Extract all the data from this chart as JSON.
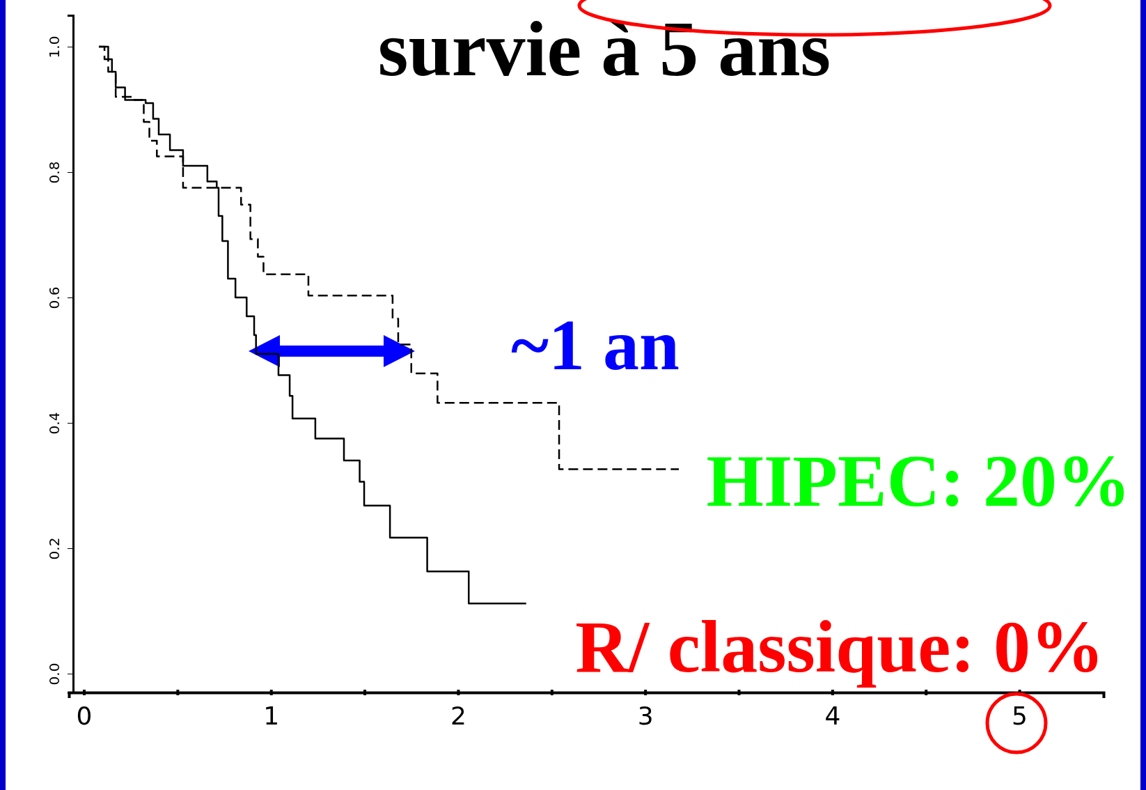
{
  "chart_data": {
    "type": "step",
    "title": "survie à 5 ans",
    "xlim": [
      -0.08,
      5.45
    ],
    "ylim": [
      -0.03,
      1.05
    ],
    "xticks": [
      0,
      {
        "value": 0.5,
        "label": null
      },
      1,
      {
        "value": 1.5,
        "label": null
      },
      2,
      {
        "value": 2.5,
        "label": null
      },
      3,
      {
        "value": 3.5,
        "label": null
      },
      4,
      {
        "value": 4.5,
        "label": null
      },
      5
    ],
    "yticks": [
      {
        "value": 0,
        "label": "0.0"
      },
      {
        "value": 0.2,
        "label": "0.2"
      },
      {
        "value": 0.4,
        "label": "0.4"
      },
      {
        "value": 0.6,
        "label": "0.6"
      },
      {
        "value": 0.8,
        "label": "0.8"
      },
      {
        "value": 1,
        "label": "1.0"
      }
    ],
    "grid": false,
    "series": [
      {
        "color": "#000000",
        "line_style": "solid",
        "x": [
          0.08,
          0.13,
          0.15,
          0.17,
          0.22,
          0.33,
          0.37,
          0.4,
          0.46,
          0.53,
          0.66,
          0.71,
          0.72,
          0.74,
          0.77,
          0.81,
          0.87,
          0.91,
          0.92,
          1.04,
          1.1,
          1.115,
          1.237,
          1.39,
          1.474,
          1.498,
          1.636,
          1.835,
          2.057,
          2.364
        ],
        "values": [
          1.0,
          0.98,
          0.96,
          0.935,
          0.915,
          0.91,
          0.885,
          0.86,
          0.835,
          0.81,
          0.785,
          0.775,
          0.73,
          0.69,
          0.63,
          0.6,
          0.57,
          0.54,
          0.51,
          0.476,
          0.443,
          0.407,
          0.375,
          0.34,
          0.306,
          0.268,
          0.217,
          0.163,
          0.112,
          0.112
        ]
      },
      {
        "color": "#000000",
        "line_style": "dashed",
        "x": [
          0.08,
          0.11,
          0.13,
          0.17,
          0.27,
          0.32,
          0.35,
          0.39,
          0.53,
          0.84,
          0.89,
          0.93,
          0.96,
          1.2,
          1.65,
          1.68,
          1.75,
          1.89,
          2.54,
          3.18
        ],
        "values": [
          1.0,
          0.98,
          0.96,
          0.92,
          0.915,
          0.88,
          0.85,
          0.825,
          0.775,
          0.748,
          0.693,
          0.665,
          0.637,
          0.603,
          0.566,
          0.525,
          0.479,
          0.432,
          0.326,
          0.326
        ]
      }
    ],
    "annotations": [
      "~1 an",
      "HIPEC: 20%",
      "R/ classique: 0%"
    ]
  }
}
